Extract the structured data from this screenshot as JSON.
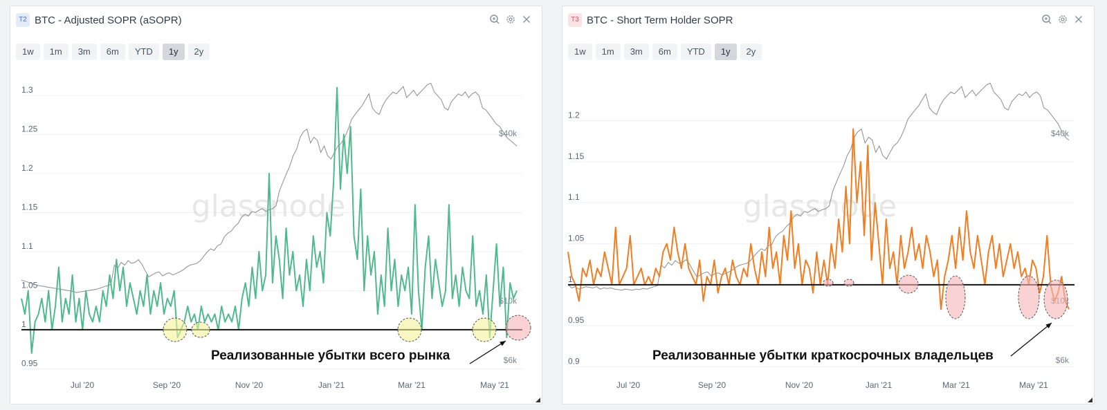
{
  "ranges": [
    "1w",
    "1m",
    "3m",
    "6m",
    "YTD",
    "1y",
    "2y"
  ],
  "active_range": "1y",
  "watermark": "glassnode",
  "colors": {
    "asopr_line": "#4fb88c",
    "sth_line": "#ef7d22",
    "price_line": "#8c8c8c",
    "baseline": "#111111",
    "yellow_highlight": "#f7f39a",
    "red_highlight": "#f7b4b8"
  },
  "chart_data": [
    {
      "type": "line",
      "badge": "T2",
      "title": "BTC - Adjusted SOPR (aSOPR)",
      "y_ticks": [
        "1.3",
        "1.25",
        "1.2",
        "1.15",
        "1.1",
        "1.05",
        "1",
        "0.95"
      ],
      "y_tick_values": [
        1.3,
        1.25,
        1.2,
        1.15,
        1.1,
        1.05,
        1.0,
        0.95
      ],
      "ylim": [
        0.938,
        1.322
      ],
      "price_ticks": [
        "$40k",
        "$10k",
        "$6k"
      ],
      "x_ticks": [
        "Jul '20",
        "Sep '20",
        "Nov '20",
        "Jan '21",
        "Mar '21",
        "May '21"
      ],
      "baseline": 1.0,
      "annotation": "Реализованные убытки всего рынка",
      "highlights_yellow": [
        "Sep 2020",
        "late Sep 2020",
        "late Feb 2021",
        "late Apr 2021"
      ],
      "highlights_red": [
        "mid May 2021"
      ],
      "series": [
        {
          "values": [
            1.04,
            1.02,
            1.05,
            0.97,
            1.01,
            1.02,
            1.04,
            1.01,
            1.05,
            1.0,
            1.03,
            1.08,
            1.01,
            1.04,
            1.02,
            1.07,
            1.01,
            1.04,
            1.0,
            1.05,
            1.02,
            1.01,
            1.03,
            1.01,
            1.05,
            1.03,
            1.07,
            1.04,
            1.09,
            1.05,
            1.08,
            1.03,
            1.06,
            1.04,
            1.02,
            1.05,
            1.03,
            1.07,
            1.02,
            1.05,
            1.03,
            1.06,
            1.02,
            1.04,
            1.03,
            1.05,
            0.99,
            1.0,
            1.01,
            1.03,
            1.01,
            1.02,
            1.0,
            1.03,
            1.01,
            1.02,
            1.01,
            1.02,
            1.0,
            1.03,
            1.01,
            1.02,
            1.01,
            1.03,
            1.0,
            1.04,
            1.06,
            1.03,
            1.08,
            1.04,
            1.1,
            1.05,
            1.07,
            1.2,
            1.06,
            1.12,
            1.09,
            1.04,
            1.13,
            1.07,
            1.1,
            1.05,
            1.07,
            1.03,
            1.09,
            1.05,
            1.12,
            1.08,
            1.1,
            1.06,
            1.15,
            1.12,
            1.19,
            1.31,
            1.18,
            1.25,
            1.2,
            1.26,
            1.12,
            1.09,
            1.18,
            1.05,
            1.12,
            1.07,
            1.1,
            1.02,
            1.07,
            1.03,
            1.13,
            1.05,
            1.09,
            1.03,
            1.07,
            1.05,
            1.08,
            1.02,
            1.16,
            1.05,
            1.0,
            1.08,
            1.12,
            1.04,
            1.09,
            1.06,
            1.03,
            1.05,
            1.16,
            1.04,
            1.07,
            1.03,
            1.08,
            1.05,
            1.04,
            1.12,
            1.03,
            1.05,
            1.02,
            1.07,
            0.99,
            1.05,
            1.11,
            1.03,
            1.08,
            0.99,
            1.06,
            1.04,
            1.05
          ],
          "price": [
            10000,
            9900,
            9800,
            9700,
            9600,
            9500,
            9450,
            9400,
            9350,
            9300,
            9250,
            9200,
            9150,
            9100,
            9050,
            9000,
            8900,
            8950,
            9000,
            9050,
            9100,
            9150,
            9200,
            9300,
            9400,
            9500,
            9600,
            11500,
            11200,
            11800,
            11500,
            12000,
            11700,
            11800,
            12100,
            11600,
            10900,
            10300,
            10500,
            10700,
            10800,
            10400,
            10600,
            10700,
            10500,
            10650,
            10800,
            11000,
            11300,
            11500,
            11600,
            11700,
            12000,
            12500,
            13000,
            13400,
            13200,
            13800,
            14000,
            15000,
            15500,
            15800,
            16500,
            17000,
            18000,
            18500,
            18200,
            19000,
            18800,
            19200,
            19500,
            19000,
            19300,
            19500,
            20000,
            23000,
            25000,
            27000,
            29000,
            32000,
            34000,
            38000,
            40000,
            41000,
            36000,
            38000,
            37000,
            33000,
            35000,
            32000,
            31000,
            33000,
            35000,
            36000,
            38000,
            41000,
            45000,
            47000,
            49000,
            51000,
            54000,
            57000,
            50000,
            48000,
            47000,
            51000,
            54000,
            56000,
            58000,
            57000,
            59000,
            61000,
            55000,
            57000,
            59000,
            56000,
            58000,
            60000,
            62000,
            63000,
            58000,
            56000,
            54000,
            50000,
            49000,
            53000,
            55000,
            57000,
            56000,
            58000,
            55000,
            57000,
            58000,
            56000,
            50000,
            49000,
            47000,
            45000,
            43000,
            42000,
            40000,
            38000,
            37000,
            36000,
            35000
          ]
        }
      ]
    },
    {
      "type": "line",
      "badge": "T3",
      "title": "BTC - Short Term Holder SOPR",
      "y_ticks": [
        "1.2",
        "1.15",
        "1.1",
        "1.05",
        "1",
        "0.95",
        "0.9"
      ],
      "y_tick_values": [
        1.2,
        1.15,
        1.1,
        1.05,
        1.0,
        0.95,
        0.9
      ],
      "ylim": [
        0.886,
        1.252
      ],
      "price_ticks": [
        "$40k",
        "$10k",
        "$6k"
      ],
      "x_ticks": [
        "Jul '20",
        "Sep '20",
        "Nov '20",
        "Jan '21",
        "Mar '21",
        "May '21"
      ],
      "baseline": 1.0,
      "annotation": "Реализованные убытки краткосрочных владельцев",
      "highlights_red": [
        "mid Dec 2020",
        "late Dec 2020",
        "late Jan 2021",
        "late Feb 2021",
        "late Apr 2021",
        "mid May 2021"
      ],
      "series": [
        {
          "values": [
            1.04,
            1.01,
            1.0,
            0.98,
            1.02,
            1.01,
            1.03,
            1.0,
            1.02,
            1.01,
            1.04,
            1.02,
            1.0,
            1.07,
            1.0,
            1.01,
            1.02,
            1.06,
            1.0,
            1.01,
            1.02,
            1.0,
            1.01,
            1.0,
            1.02,
            1.01,
            1.04,
            1.05,
            1.03,
            1.07,
            1.04,
            1.02,
            1.05,
            1.02,
            1.01,
            1.0,
            1.03,
            0.98,
            1.01,
            1.0,
            1.03,
            0.99,
            1.01,
            1.02,
            1.0,
            1.03,
            1.01,
            1.0,
            1.02,
            1.01,
            1.05,
            1.02,
            1.0,
            1.04,
            1.01,
            1.07,
            1.02,
            1.04,
            1.0,
            1.06,
            1.03,
            1.09,
            1.02,
            1.05,
            1.0,
            1.03,
            1.02,
            0.99,
            1.04,
            1.0,
            1.03,
            1.0,
            1.05,
            1.02,
            1.08,
            1.04,
            1.12,
            1.05,
            1.19,
            1.1,
            1.15,
            1.06,
            1.17,
            1.03,
            1.1,
            1.05,
            1.0,
            1.08,
            1.02,
            1.04,
            1.0,
            1.06,
            1.02,
            1.04,
            1.07,
            1.03,
            1.05,
            1.02,
            1.06,
            1.04,
            1.01,
            1.03,
            0.97,
            1.01,
            1.03,
            1.06,
            1.02,
            1.07,
            1.03,
            1.09,
            1.04,
            1.02,
            1.06,
            1.03,
            1.0,
            1.04,
            1.06,
            1.02,
            1.05,
            1.01,
            1.03,
            1.05,
            1.02,
            1.04,
            1.01,
            1.02,
            1.0,
            1.03,
            1.02,
            0.99,
            1.01,
            1.06,
            1.0,
            0.98,
            0.99,
            1.01,
            0.98,
            0.97
          ],
          "price": [
            9600,
            9300,
            9400,
            9200,
            9300,
            9400,
            9350,
            9300,
            9400,
            9200,
            9300,
            9250,
            9300,
            9200,
            9150,
            9100,
            9200,
            9150,
            9100,
            9200,
            9150,
            9250,
            9200,
            9300,
            9400,
            9500,
            11500,
            11200,
            11800,
            11500,
            12000,
            11700,
            11800,
            12100,
            11600,
            10900,
            10300,
            10500,
            10700,
            10800,
            10400,
            10600,
            10700,
            10500,
            10650,
            10800,
            11000,
            11300,
            11500,
            11600,
            11700,
            12000,
            12500,
            13000,
            13400,
            13200,
            13800,
            14000,
            15000,
            15500,
            15800,
            16500,
            17000,
            18000,
            18500,
            18200,
            19000,
            18800,
            19200,
            19500,
            19000,
            19300,
            19500,
            20000,
            23000,
            25000,
            27000,
            29000,
            32000,
            34000,
            38000,
            40000,
            41000,
            36000,
            38000,
            37000,
            33000,
            35000,
            32000,
            31000,
            33000,
            35000,
            36000,
            38000,
            41000,
            45000,
            47000,
            49000,
            51000,
            54000,
            57000,
            50000,
            48000,
            47000,
            51000,
            54000,
            56000,
            58000,
            57000,
            59000,
            61000,
            55000,
            57000,
            59000,
            56000,
            58000,
            60000,
            62000,
            63000,
            58000,
            56000,
            54000,
            50000,
            49000,
            53000,
            55000,
            57000,
            56000,
            58000,
            55000,
            57000,
            58000,
            56000,
            50000,
            49000,
            47000,
            45000,
            43000,
            40000,
            38000,
            37000
          ]
        }
      ]
    }
  ]
}
